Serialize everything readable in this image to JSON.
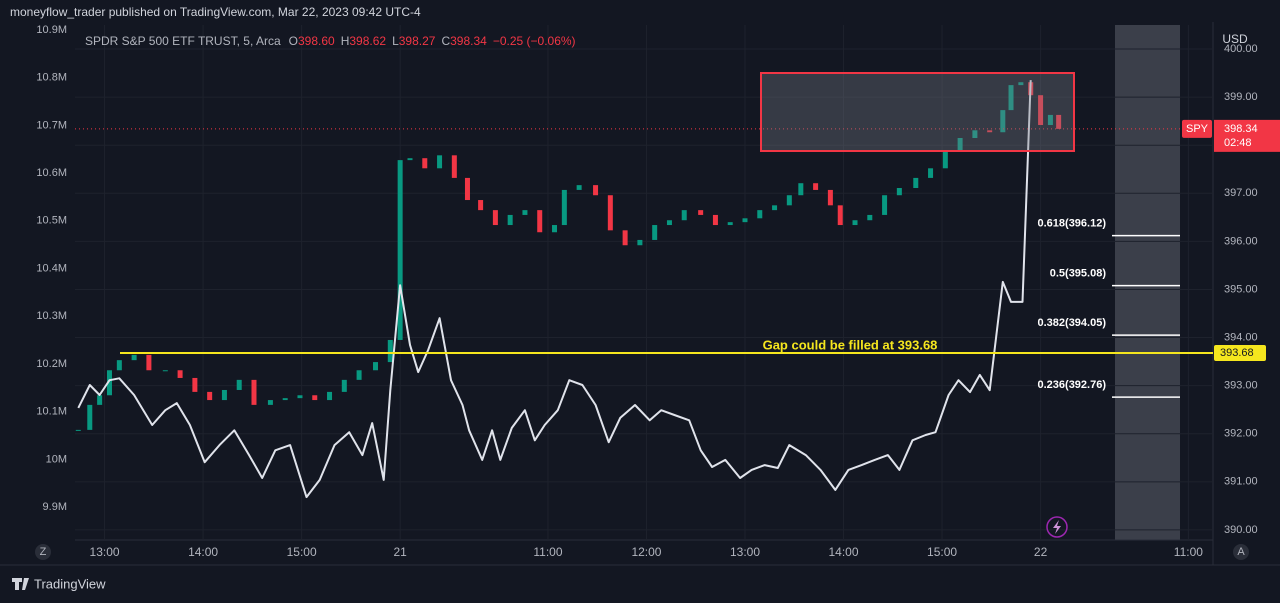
{
  "header": {
    "publisher": "moneyflow_trader published on TradingView.com, Mar 22, 2023 09:42 UTC-4"
  },
  "legend": {
    "symbol": "SPDR S&P 500 ETF TRUST, 5, Arca",
    "o_label": "O",
    "o": "398.60",
    "h_label": "H",
    "h": "398.62",
    "l_label": "L",
    "l": "398.27",
    "c_label": "C",
    "c": "398.34",
    "change": "−0.25 (−0.06%)"
  },
  "ui": {
    "currency": "USD",
    "z": "Z",
    "a": "A",
    "brand": "TradingView"
  },
  "chart_data": {
    "type": "candlestick",
    "xlim": [
      192,
      885
    ],
    "xticks": [
      {
        "value": 210,
        "label": "13:00"
      },
      {
        "value": 270,
        "label": "14:00"
      },
      {
        "value": 330,
        "label": "15:00"
      },
      {
        "value": 390,
        "label": "21"
      },
      {
        "value": 480,
        "label": "11:00"
      },
      {
        "value": 540,
        "label": "12:00"
      },
      {
        "value": 600,
        "label": "13:00"
      },
      {
        "value": 660,
        "label": "14:00"
      },
      {
        "value": 720,
        "label": "15:00"
      },
      {
        "value": 780,
        "label": "22"
      },
      {
        "value": 870,
        "label": "11:00"
      }
    ],
    "ylim": [
      389.79,
      400.5
    ],
    "yticks": [
      {
        "value": 390,
        "label": "390.00"
      },
      {
        "value": 391,
        "label": "391.00"
      },
      {
        "value": 392,
        "label": "392.00"
      },
      {
        "value": 393,
        "label": "393.00"
      },
      {
        "value": 394,
        "label": "394.00"
      },
      {
        "value": 395,
        "label": "395.00"
      },
      {
        "value": 396,
        "label": "396.00"
      },
      {
        "value": 397,
        "label": "397.00"
      },
      {
        "value": 398,
        "label": "398.00"
      },
      {
        "value": 399,
        "label": "399.00"
      },
      {
        "value": 400,
        "label": "400.00"
      }
    ],
    "y2lim": [
      9831000,
      10910500
    ],
    "y2ticks": [
      {
        "value": 9900000,
        "label": "9.9M"
      },
      {
        "value": 10000000,
        "label": "10M"
      },
      {
        "value": 10100000,
        "label": "10.1M"
      },
      {
        "value": 10200000,
        "label": "10.2M"
      },
      {
        "value": 10300000,
        "label": "10.3M"
      },
      {
        "value": 10400000,
        "label": "10.4M"
      },
      {
        "value": 10500000,
        "label": "10.5M"
      },
      {
        "value": 10600000,
        "label": "10.6M"
      },
      {
        "value": 10700000,
        "label": "10.7M"
      },
      {
        "value": 10800000,
        "label": "10.8M"
      },
      {
        "value": 10900000,
        "label": "10.9M"
      }
    ],
    "up_color": "#089981",
    "down_color": "#f23645",
    "candles": {
      "x": [
        194,
        201,
        207,
        213,
        219,
        228,
        237,
        247,
        256,
        265,
        274,
        283,
        292,
        301,
        311,
        320,
        329,
        338,
        347,
        356,
        365,
        375,
        384,
        390,
        396,
        405,
        414,
        423,
        431,
        439,
        448,
        457,
        466,
        475,
        484,
        490,
        499,
        509,
        518,
        527,
        536,
        545,
        554,
        563,
        573,
        582,
        591,
        600,
        609,
        618,
        627,
        634,
        643,
        652,
        658,
        667,
        676,
        685,
        694,
        704,
        713,
        722,
        731,
        740,
        749,
        757,
        762,
        768,
        774,
        780,
        786,
        791
      ],
      "close": [
        392.08,
        392.6,
        392.8,
        393.32,
        393.53,
        393.64,
        393.32,
        393.32,
        393.16,
        392.87,
        392.7,
        392.91,
        393.12,
        392.6,
        392.7,
        392.74,
        392.8,
        392.7,
        392.87,
        393.12,
        393.32,
        393.49,
        393.95,
        397.69,
        397.73,
        397.52,
        397.79,
        397.32,
        396.86,
        396.65,
        396.34,
        396.55,
        396.65,
        396.19,
        396.34,
        397.07,
        397.17,
        396.96,
        396.23,
        395.92,
        396.03,
        396.34,
        396.44,
        396.65,
        396.55,
        396.34,
        396.4,
        396.48,
        396.65,
        396.75,
        396.96,
        397.21,
        397.07,
        396.75,
        396.34,
        396.44,
        396.55,
        396.96,
        397.11,
        397.32,
        397.52,
        397.86,
        398.15,
        398.31,
        398.27,
        398.73,
        399.25,
        399.31,
        399.04,
        398.42,
        398.63,
        398.34
      ]
    },
    "series": [
      {
        "axis": "y2",
        "color": "#e0e3eb",
        "x": [
          194,
          201,
          207,
          213,
          219,
          228,
          239,
          247,
          254,
          262,
          271,
          280,
          289,
          298,
          306,
          314,
          323,
          333,
          341,
          350,
          359,
          367,
          373,
          380,
          384,
          390,
          396,
          401,
          407,
          414,
          421,
          428,
          432,
          440,
          446,
          451,
          458,
          466,
          472,
          478,
          486,
          493,
          501,
          509,
          517,
          524,
          533,
          542,
          549,
          557,
          566,
          573,
          580,
          588,
          597,
          604,
          612,
          620,
          627,
          637,
          646,
          655,
          663,
          671,
          679,
          687,
          694,
          702,
          710,
          716,
          724,
          730,
          737,
          743,
          749,
          757,
          762,
          769,
          774
        ],
        "values": [
          10108000,
          10156000,
          10135000,
          10166000,
          10170000,
          10135000,
          10072000,
          10103000,
          10118000,
          10072000,
          9994000,
          10030000,
          10061000,
          10009000,
          9961000,
          10019000,
          10030000,
          9921000,
          9957000,
          10030000,
          10057000,
          10009000,
          10076000,
          9957000,
          10145000,
          10365000,
          10240000,
          10183000,
          10229000,
          10296000,
          10166000,
          10114000,
          10061000,
          9999000,
          10061000,
          9999000,
          10066000,
          10103000,
          10040000,
          10072000,
          10103000,
          10166000,
          10156000,
          10114000,
          10036000,
          10087000,
          10114000,
          10082000,
          10103000,
          10093000,
          10082000,
          10019000,
          9984000,
          9999000,
          9961000,
          9978000,
          9988000,
          9982000,
          10030000,
          10009000,
          9978000,
          9936000,
          9978000,
          9988000,
          9999000,
          10009000,
          9978000,
          10040000,
          10051000,
          10057000,
          10135000,
          10166000,
          10141000,
          10177000,
          10145000,
          10372000,
          10330000,
          10330000,
          10795000
        ]
      }
    ],
    "gap_level": {
      "value": 393.68,
      "annotation": "Gap could be filled  at 393.68",
      "color": "#f5e61e"
    },
    "last_price": {
      "symbol": "SPY",
      "value": 398.34,
      "countdown": "02:48",
      "color": "#f23645"
    },
    "fib_levels": [
      {
        "label": "0.618(396.12)",
        "value": 396.12
      },
      {
        "label": "0.5(395.08)",
        "value": 395.08
      },
      {
        "label": "0.382(394.05)",
        "value": 394.05
      },
      {
        "label": "0.236(392.76)",
        "value": 392.76
      }
    ]
  }
}
